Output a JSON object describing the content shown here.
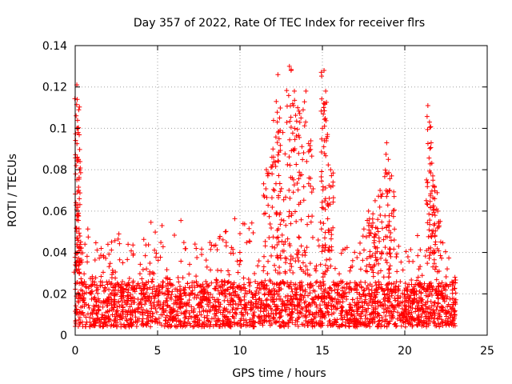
{
  "chart_data": {
    "type": "scatter",
    "title": "Day 357 of 2022, Rate Of TEC Index for receiver flrs",
    "xlabel": "GPS time / hours",
    "ylabel": "ROTI / TECUs",
    "xlim": [
      0,
      25
    ],
    "ylim": [
      0,
      0.14
    ],
    "xticks": [
      0,
      5,
      10,
      15,
      20,
      25
    ],
    "xtick_labels": [
      "0",
      "5",
      "10",
      "15",
      "20",
      "25"
    ],
    "yticks": [
      0,
      0.02,
      0.04,
      0.06,
      0.08,
      0.1,
      0.12,
      0.14
    ],
    "ytick_labels": [
      "0",
      "0.02",
      "0.04",
      "0.06",
      "0.08",
      "0.1",
      "0.12",
      "0.14"
    ],
    "grid": true,
    "marker": "+",
    "color": "#ff0000",
    "data_range_hours": [
      0,
      23.1
    ],
    "background_envelope": [
      [
        0,
        0.038
      ],
      [
        0.2,
        0.045
      ],
      [
        0.5,
        0.06
      ],
      [
        1,
        0.045
      ],
      [
        2,
        0.045
      ],
      [
        3,
        0.055
      ],
      [
        4,
        0.045
      ],
      [
        4.5,
        0.06
      ],
      [
        5,
        0.05
      ],
      [
        5.5,
        0.057
      ],
      [
        6,
        0.05
      ],
      [
        6.5,
        0.06
      ],
      [
        7,
        0.045
      ],
      [
        8,
        0.045
      ],
      [
        9,
        0.05
      ],
      [
        10,
        0.06
      ],
      [
        11,
        0.055
      ],
      [
        11.5,
        0.06
      ],
      [
        12,
        0.065
      ],
      [
        13,
        0.065
      ],
      [
        14,
        0.06
      ],
      [
        15,
        0.055
      ],
      [
        16,
        0.05
      ],
      [
        17,
        0.045
      ],
      [
        18,
        0.06
      ],
      [
        19,
        0.05
      ],
      [
        20,
        0.045
      ],
      [
        21,
        0.05
      ],
      [
        22,
        0.05
      ],
      [
        23.1,
        0.035
      ]
    ],
    "peaks": [
      {
        "x": 0.1,
        "y": 0.121
      },
      {
        "x": 0.12,
        "y": 0.114
      },
      {
        "x": 0.15,
        "y": 0.1
      },
      {
        "x": 0.18,
        "y": 0.098
      },
      {
        "x": 0.2,
        "y": 0.085
      },
      {
        "x": 0.25,
        "y": 0.066
      },
      {
        "x": 11.6,
        "y": 0.08
      },
      {
        "x": 12.0,
        "y": 0.09
      },
      {
        "x": 12.2,
        "y": 0.113
      },
      {
        "x": 12.3,
        "y": 0.126
      },
      {
        "x": 12.4,
        "y": 0.105
      },
      {
        "x": 12.6,
        "y": 0.098
      },
      {
        "x": 13.0,
        "y": 0.13
      },
      {
        "x": 13.1,
        "y": 0.128
      },
      {
        "x": 13.3,
        "y": 0.118
      },
      {
        "x": 13.5,
        "y": 0.11
      },
      {
        "x": 13.7,
        "y": 0.105
      },
      {
        "x": 14.0,
        "y": 0.118
      },
      {
        "x": 14.3,
        "y": 0.094
      },
      {
        "x": 15.0,
        "y": 0.1
      },
      {
        "x": 15.1,
        "y": 0.128
      },
      {
        "x": 15.2,
        "y": 0.118
      },
      {
        "x": 15.3,
        "y": 0.096
      },
      {
        "x": 15.5,
        "y": 0.08
      },
      {
        "x": 17.8,
        "y": 0.06
      },
      {
        "x": 18.2,
        "y": 0.065
      },
      {
        "x": 18.5,
        "y": 0.07
      },
      {
        "x": 18.9,
        "y": 0.093
      },
      {
        "x": 19.0,
        "y": 0.085
      },
      {
        "x": 19.2,
        "y": 0.077
      },
      {
        "x": 21.4,
        "y": 0.111
      },
      {
        "x": 21.5,
        "y": 0.103
      },
      {
        "x": 21.6,
        "y": 0.093
      },
      {
        "x": 21.7,
        "y": 0.077
      },
      {
        "x": 21.8,
        "y": 0.072
      },
      {
        "x": 22.0,
        "y": 0.06
      }
    ]
  }
}
